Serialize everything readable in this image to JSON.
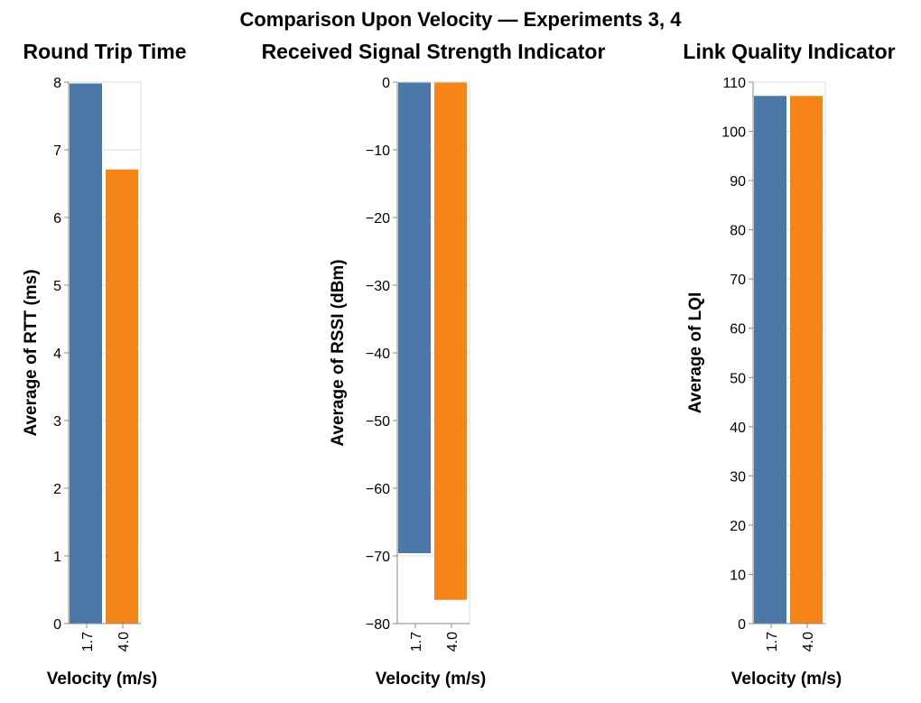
{
  "title": "Comparison Upon Velocity — Experiments 3, 4",
  "colors": {
    "v17": "#4c78a8",
    "v40": "#f58518"
  },
  "chart_data": [
    {
      "type": "bar",
      "title": "Round Trip Time",
      "xlabel": "Velocity (m/s)",
      "ylabel": "Average of RTT (ms)",
      "categories": [
        "1.7",
        "4.0"
      ],
      "values": [
        7.98,
        6.71
      ],
      "ylim": [
        0,
        8
      ],
      "yticks": [
        0,
        1,
        2,
        3,
        4,
        5,
        6,
        7,
        8
      ],
      "ytick_labels": [
        "0",
        "1",
        "2",
        "3",
        "4",
        "5",
        "6",
        "7",
        "8"
      ],
      "grid": true
    },
    {
      "type": "bar",
      "title": "Received Signal Strength Indicator",
      "xlabel": "Velocity (m/s)",
      "ylabel": "Average of RSSI (dBm)",
      "categories": [
        "1.7",
        "4.0"
      ],
      "values": [
        -69.6,
        -76.5
      ],
      "ylim": [
        -80,
        0
      ],
      "yticks": [
        0,
        -10,
        -20,
        -30,
        -40,
        -50,
        -60,
        -70,
        -80
      ],
      "ytick_labels": [
        "0",
        "−10",
        "−20",
        "−30",
        "−40",
        "−50",
        "−60",
        "−70",
        "−80"
      ],
      "grid": true
    },
    {
      "type": "bar",
      "title": "Link Quality Indicator",
      "xlabel": "Velocity (m/s)",
      "ylabel": "Average of LQI",
      "categories": [
        "1.7",
        "4.0"
      ],
      "values": [
        107.2,
        107.2
      ],
      "ylim": [
        0,
        110
      ],
      "yticks": [
        0,
        10,
        20,
        30,
        40,
        50,
        60,
        70,
        80,
        90,
        100,
        110
      ],
      "ytick_labels": [
        "0",
        "10",
        "20",
        "30",
        "40",
        "50",
        "60",
        "70",
        "80",
        "90",
        "100",
        "110"
      ],
      "grid": true
    }
  ]
}
